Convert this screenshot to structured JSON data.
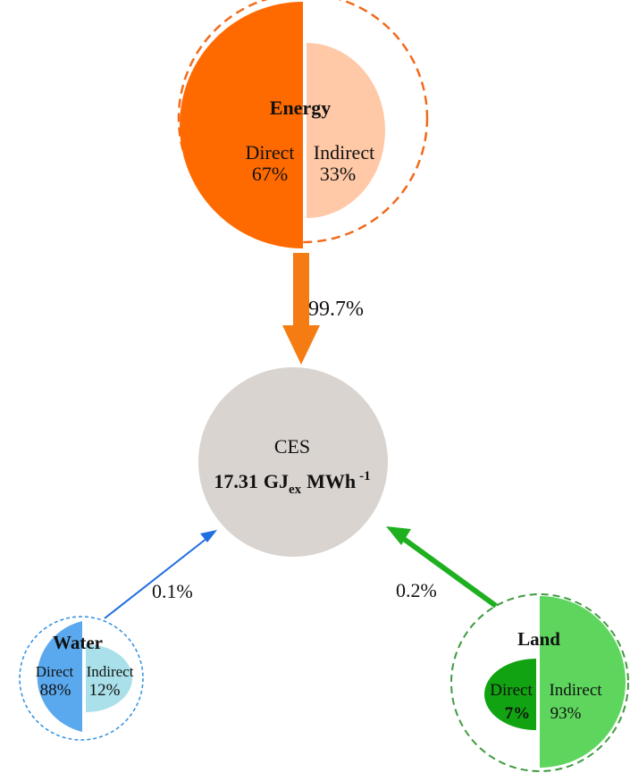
{
  "colors": {
    "energy_direct": "#ff6a00",
    "energy_indirect": "#ffc8a6",
    "energy_ring": "#f26b1d",
    "energy_arrow": "#f57c12",
    "ces_fill": "#d9d4cf",
    "water_direct": "#5aa9ee",
    "water_indirect": "#a9e0ea",
    "water_ring": "#2f8fe0",
    "water_arrow": "#1f6fe0",
    "land_direct": "#11a311",
    "land_indirect": "#5ed65e",
    "land_ring": "#3f9a3f",
    "land_arrow": "#1fb01f"
  },
  "energy": {
    "title": "Energy",
    "direct_label": "Direct",
    "direct_pct": "67%",
    "indirect_label": "Indirect",
    "indirect_pct": "33%"
  },
  "ces": {
    "label": "CES",
    "value": "17.31",
    "unit_main": "GJ",
    "unit_sub": "ex",
    "unit_tail": "MWh",
    "unit_sup": "-1"
  },
  "water": {
    "title": "Water",
    "direct_label": "Direct",
    "direct_pct": "88%",
    "indirect_label": "Indirect",
    "indirect_pct": "12%"
  },
  "land": {
    "title": "Land",
    "direct_label": "Direct",
    "direct_pct": "7%",
    "indirect_label": "Indirect",
    "indirect_pct": "93%"
  },
  "flows": {
    "energy_share": "99.7%",
    "water_share": "0.1%",
    "land_share": "0.2%"
  }
}
